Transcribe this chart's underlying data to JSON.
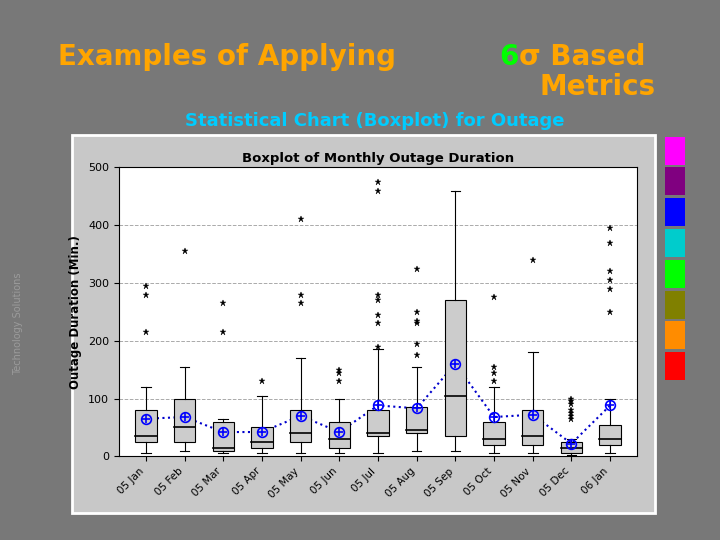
{
  "chart_title": "Boxplot of Monthly Outage Duration",
  "ylabel": "Outage Duration (Min.)",
  "background_color": "#787878",
  "panel_bg": "#c8c8c8",
  "plot_bg": "#ffffff",
  "months": [
    "05 Jan",
    "05 Feb",
    "05 Mar",
    "05 Apr",
    "05 May",
    "05 Jun",
    "05 Jul",
    "05 Aug",
    "05 Sep",
    "05 Oct",
    "05 Nov",
    "05 Dec",
    "06 Jan"
  ],
  "box_data": {
    "05 Jan": {
      "q1": 25,
      "median": 35,
      "q3": 80,
      "whislo": 5,
      "whishi": 120,
      "mean": 65,
      "fliers": [
        215,
        280,
        295
      ]
    },
    "05 Feb": {
      "q1": 25,
      "median": 50,
      "q3": 100,
      "whislo": 10,
      "whishi": 155,
      "mean": 68,
      "fliers": [
        355
      ]
    },
    "05 Mar": {
      "q1": 10,
      "median": 15,
      "q3": 60,
      "whislo": 5,
      "whishi": 65,
      "mean": 42,
      "fliers": [
        215,
        265
      ]
    },
    "05 Apr": {
      "q1": 15,
      "median": 25,
      "q3": 50,
      "whislo": 5,
      "whishi": 105,
      "mean": 42,
      "fliers": [
        130
      ]
    },
    "05 May": {
      "q1": 25,
      "median": 40,
      "q3": 80,
      "whislo": 5,
      "whishi": 170,
      "mean": 70,
      "fliers": [
        265,
        280,
        410
      ]
    },
    "05 Jun": {
      "q1": 15,
      "median": 30,
      "q3": 60,
      "whislo": 5,
      "whishi": 100,
      "mean": 42,
      "fliers": [
        130,
        145,
        150
      ]
    },
    "05 Jul": {
      "q1": 35,
      "median": 40,
      "q3": 80,
      "whislo": 5,
      "whishi": 185,
      "mean": 88,
      "fliers": [
        190,
        230,
        245,
        270,
        280,
        460,
        475
      ]
    },
    "05 Aug": {
      "q1": 40,
      "median": 45,
      "q3": 85,
      "whislo": 10,
      "whishi": 155,
      "mean": 83,
      "fliers": [
        175,
        195,
        230,
        235,
        250,
        325
      ]
    },
    "05 Sep": {
      "q1": 35,
      "median": 105,
      "q3": 270,
      "whislo": 10,
      "whishi": 460,
      "mean": 160,
      "fliers": []
    },
    "05 Oct": {
      "q1": 20,
      "median": 30,
      "q3": 60,
      "whislo": 5,
      "whishi": 120,
      "mean": 68,
      "fliers": [
        130,
        145,
        155,
        275
      ]
    },
    "05 Nov": {
      "q1": 20,
      "median": 35,
      "q3": 80,
      "whislo": 5,
      "whishi": 180,
      "mean": 72,
      "fliers": [
        340
      ]
    },
    "05 Dec": {
      "q1": 5,
      "median": 15,
      "q3": 25,
      "whislo": 2,
      "whishi": 30,
      "mean": 22,
      "fliers": [
        65,
        70,
        75,
        80,
        90,
        95,
        100
      ]
    },
    "06 Jan": {
      "q1": 20,
      "median": 30,
      "q3": 55,
      "whislo": 5,
      "whishi": 100,
      "mean": 88,
      "fliers": [
        250,
        290,
        305,
        320,
        370,
        395
      ]
    }
  },
  "mean_line_color": "#0000cc",
  "ylim": [
    0,
    500
  ],
  "yticks": [
    0,
    100,
    200,
    300,
    400,
    500
  ],
  "color_blocks": [
    "#ff00ff",
    "#800080",
    "#0000ff",
    "#00cccc",
    "#00ff00",
    "#808000",
    "#ff8c00",
    "#ff0000"
  ],
  "title_color": "#ffa500",
  "sigma_color": "#00ff00",
  "subtitle_color": "#00ccff",
  "side_text": "Technology Solutions",
  "title_line1_pre6": "Examples of Applying ",
  "title_line1_post6": "σ Based",
  "title_line2": "Metrics"
}
